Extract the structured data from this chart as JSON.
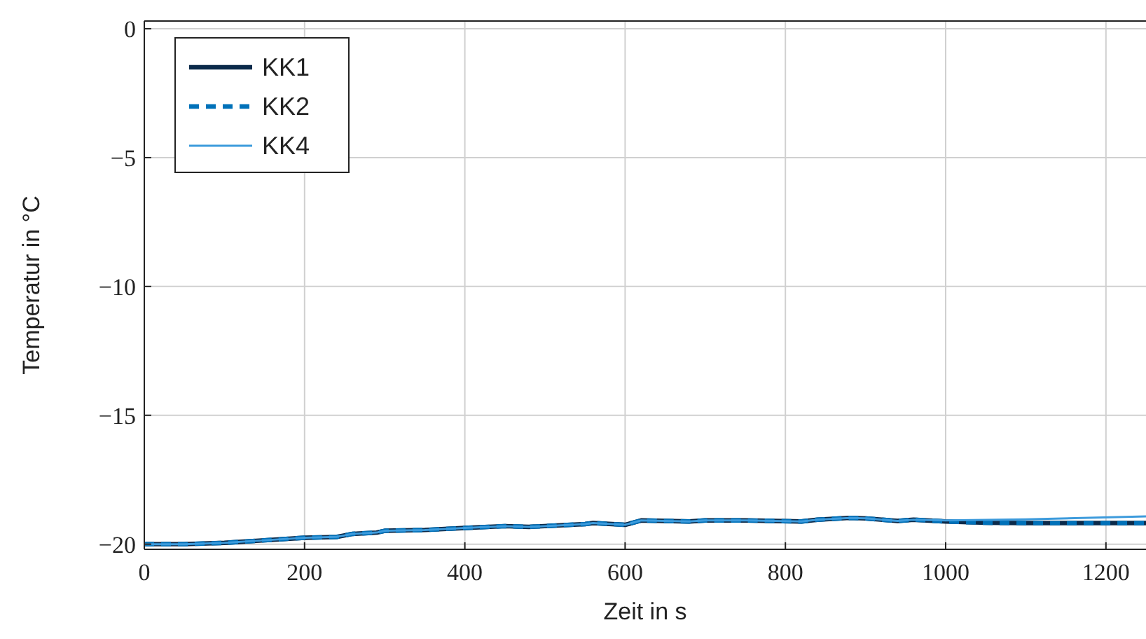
{
  "chart_data": {
    "type": "line",
    "xlabel": "Zeit in s",
    "ylabel": "Temperatur in °C",
    "xlim": [
      0,
      1250
    ],
    "ylim": [
      -20.2,
      0.3
    ],
    "xticks": [
      0,
      200,
      400,
      600,
      800,
      1000,
      1200
    ],
    "yticks": [
      {
        "value": 0,
        "label": "0"
      },
      {
        "value": -5,
        "label": "−5"
      },
      {
        "value": -10,
        "label": "−10"
      },
      {
        "value": -15,
        "label": "−15"
      },
      {
        "value": -20,
        "label": "−20"
      }
    ],
    "grid": true,
    "legend": "top left",
    "x": [
      0,
      50,
      100,
      150,
      200,
      240,
      260,
      290,
      300,
      350,
      400,
      450,
      480,
      550,
      560,
      600,
      620,
      680,
      700,
      750,
      820,
      840,
      880,
      900,
      940,
      960,
      1000,
      1050,
      1100,
      1250
    ],
    "series": [
      {
        "name": "KK1",
        "color": "#0b2a4a",
        "line_style": "solid",
        "values": [
          -20,
          -20,
          -19.95,
          -19.85,
          -19.75,
          -19.72,
          -19.6,
          -19.55,
          -19.48,
          -19.45,
          -19.37,
          -19.3,
          -19.33,
          -19.22,
          -19.18,
          -19.25,
          -19.08,
          -19.12,
          -19.08,
          -19.08,
          -19.12,
          -19.05,
          -18.98,
          -19,
          -19.1,
          -19.05,
          -19.12,
          -19.17,
          -19.18,
          -19.18
        ]
      },
      {
        "name": "KK2",
        "color": "#0071b9",
        "line_style": "dashed",
        "values": [
          -20,
          -20,
          -19.95,
          -19.85,
          -19.75,
          -19.72,
          -19.6,
          -19.55,
          -19.48,
          -19.45,
          -19.37,
          -19.3,
          -19.33,
          -19.22,
          -19.18,
          -19.25,
          -19.08,
          -19.12,
          -19.08,
          -19.08,
          -19.12,
          -19.05,
          -18.98,
          -19,
          -19.1,
          -19.05,
          -19.12,
          -19.17,
          -19.18,
          -19.18
        ]
      },
      {
        "name": "KK4",
        "color": "#3d9bdc",
        "line_style": "solid",
        "values": [
          -20,
          -20,
          -19.95,
          -19.85,
          -19.75,
          -19.72,
          -19.6,
          -19.55,
          -19.48,
          -19.45,
          -19.37,
          -19.3,
          -19.33,
          -19.22,
          -19.18,
          -19.25,
          -19.08,
          -19.12,
          -19.08,
          -19.08,
          -19.12,
          -19.05,
          -18.98,
          -19,
          -19.1,
          -19.05,
          -19.08,
          -19.06,
          -19.04,
          -18.92
        ]
      }
    ]
  }
}
